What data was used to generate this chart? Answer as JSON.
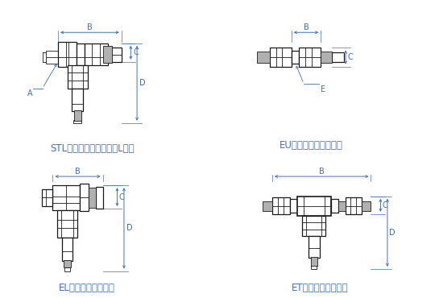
{
  "title_color": "#4472c4",
  "line_color": "#1a1a1a",
  "dim_color": "#4472c4",
  "bg_color": "#ffffff",
  "gray_color": "#b0b0b0",
  "labels": {
    "STL": "STL：スタッドチーズ（L型）",
    "EU": "EU：イコールユニオン",
    "EL": "EL：イコールエルボ",
    "ET": "ET：イコールチーズ"
  },
  "label_fontsize": 8.5
}
